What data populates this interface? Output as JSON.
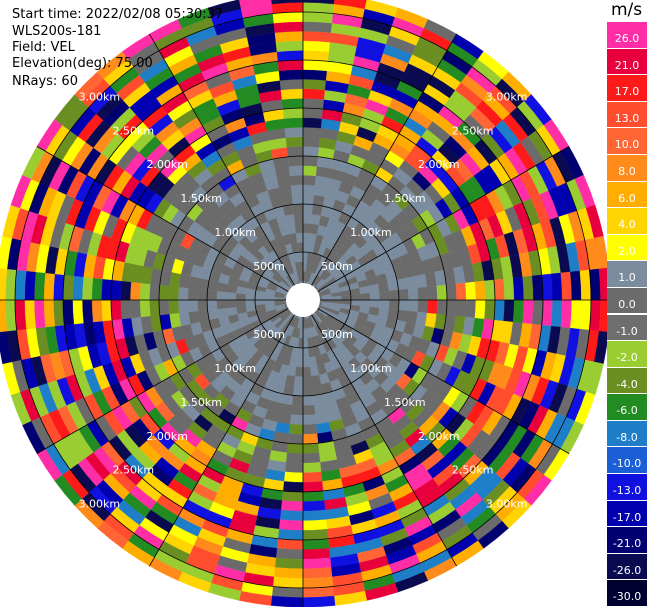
{
  "header": {
    "start_time": "Start time: 2022/02/08 05:30:37",
    "instrument": "WLS200s-181",
    "field": "Field: VEL",
    "elevation": "Elevation(deg): 75.00",
    "nrays": "NRays: 60"
  },
  "colorbar": {
    "units": "m/s",
    "levels": [
      {
        "label": "26.0",
        "color": "#ff2da6"
      },
      {
        "label": "21.0",
        "color": "#e8003d"
      },
      {
        "label": "17.0",
        "color": "#ff1a1a"
      },
      {
        "label": "13.0",
        "color": "#ff4d2e"
      },
      {
        "label": "10.0",
        "color": "#ff6633"
      },
      {
        "label": "8.0",
        "color": "#ff8c1a"
      },
      {
        "label": "6.0",
        "color": "#ffae00"
      },
      {
        "label": "4.0",
        "color": "#ffd400"
      },
      {
        "label": "2.0",
        "color": "#ffff00"
      },
      {
        "label": "1.0",
        "color": "#7a8c9e"
      },
      {
        "label": "0.0",
        "color": "#6b6b6b"
      },
      {
        "label": "-1.0",
        "color": "#6e6e6e"
      },
      {
        "label": "-2.0",
        "color": "#9acd32"
      },
      {
        "label": "-4.0",
        "color": "#6b8e23"
      },
      {
        "label": "-6.0",
        "color": "#228b22"
      },
      {
        "label": "-8.0",
        "color": "#1e7fc8"
      },
      {
        "label": "-10.0",
        "color": "#1a5fd6"
      },
      {
        "label": "-13.0",
        "color": "#1010e0"
      },
      {
        "label": "-17.0",
        "color": "#0000b0"
      },
      {
        "label": "-21.0",
        "color": "#000070"
      },
      {
        "label": "-26.0",
        "color": "#0a0a50"
      },
      {
        "label": "-30.0",
        "color": "#000030"
      }
    ]
  },
  "chart_data": {
    "type": "heatmap",
    "projection": "polar PPI",
    "field": "VEL",
    "units": "m/s",
    "nrays": 60,
    "range_rings_km": [
      0.5,
      1.0,
      1.5,
      2.0,
      2.5,
      3.0
    ],
    "range_ring_labels": [
      "500m",
      "1.00km",
      "1.50km",
      "2.00km",
      "2.50km",
      "3.00km"
    ],
    "gate_spacing_km": 0.1,
    "first_gate_km": 0.1,
    "max_range_km": 3.2,
    "spoke_angles_deg": [
      0,
      30,
      60,
      90,
      120,
      150,
      180,
      210,
      240,
      270,
      300,
      330
    ],
    "rings": [
      {
        "range_km": [
          0.1,
          1.5
        ],
        "dominant_value": "1.0 / 0.0 / -1.0",
        "note": "mostly grey, near-zero velocity"
      },
      {
        "range_km": [
          1.5,
          2.0
        ],
        "dominant_value": "mixed",
        "note": "transition, olive and grey with scattered colours"
      },
      {
        "range_km": [
          2.0,
          3.2
        ],
        "dominant_value": "mixed",
        "note": "noisy gates spanning full colour scale"
      }
    ]
  }
}
